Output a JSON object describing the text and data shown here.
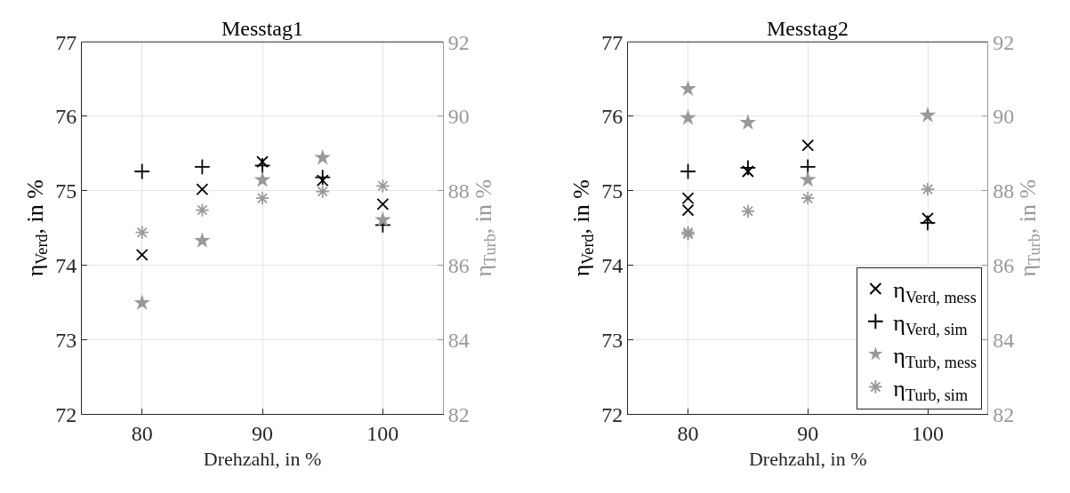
{
  "chart_data": [
    {
      "type": "scatter",
      "title": "Messtag1",
      "xlabel": "Drehzahl, in %",
      "ylabel": "η$_{Verd}$, in %",
      "y2label": "η$_{Turb}$, in %",
      "xlim": [
        75,
        105
      ],
      "xticks": [
        80,
        90,
        100
      ],
      "ylim": [
        72,
        77
      ],
      "yticks": [
        72,
        73,
        74,
        75,
        76,
        77
      ],
      "y2lim": [
        82,
        92
      ],
      "y2ticks": [
        82,
        84,
        86,
        88,
        90,
        92
      ],
      "grid": true,
      "legend": false,
      "series": [
        {
          "color": "#000000",
          "marker": "x",
          "x": [
            80,
            85,
            90,
            95,
            100
          ],
          "values": [
            74.14,
            75.02,
            75.39,
            75.14,
            74.82
          ]
        },
        {
          "color": "#000000",
          "marker": "cross",
          "x": [
            80,
            85,
            90,
            95,
            100
          ],
          "values": [
            75.26,
            75.32,
            75.34,
            75.18,
            74.54
          ]
        },
        {
          "color": "#999999",
          "marker": "star",
          "axis": "y2",
          "x": [
            80,
            85,
            90,
            95,
            100
          ],
          "values": [
            84.99,
            86.66,
            88.29,
            88.89,
            87.22
          ]
        },
        {
          "color": "#999999",
          "axis": "y2",
          "x": [
            80,
            85,
            90,
            95,
            100
          ],
          "values": [
            86.88,
            87.48,
            87.8,
            87.98,
            88.13
          ]
        }
      ]
    },
    {
      "type": "scatter",
      "title": "Messtag2",
      "xlabel": "Drehzahl, in %",
      "ylabel": "η$_{Verd}$, in %",
      "y2label": "η$_{Turb}$, in %",
      "xlim": [
        75,
        105
      ],
      "xticks": [
        80,
        90,
        100
      ],
      "ylim": [
        72,
        77
      ],
      "yticks": [
        72,
        73,
        74,
        75,
        76,
        77
      ],
      "y2lim": [
        82,
        92
      ],
      "y2ticks": [
        82,
        84,
        86,
        88,
        90,
        92
      ],
      "grid": true,
      "legend": "bottom right",
      "series": [
        {
          "name": "η$_{Verd, mess}$",
          "color": "#000000",
          "marker": "x",
          "x": [
            80,
            80,
            85,
            90,
            100
          ],
          "values": [
            74.9,
            74.74,
            75.26,
            75.61,
            74.63
          ]
        },
        {
          "name": "η$_{Verd, sim}$",
          "color": "#000000",
          "marker": "cross",
          "x": [
            80,
            85,
            90,
            100
          ],
          "values": [
            75.26,
            75.31,
            75.32,
            74.57
          ]
        },
        {
          "name": "η$_{Turb, mess}$",
          "color": "#999999",
          "marker": "star",
          "axis": "y2",
          "x": [
            80,
            80,
            85,
            90,
            100
          ],
          "values": [
            90.74,
            89.96,
            89.83,
            88.3,
            90.03
          ]
        },
        {
          "name": "η$_{Turb, sim}$",
          "color": "#999999",
          "axis": "y2",
          "x": [
            80,
            80,
            85,
            90,
            100
          ],
          "values": [
            86.88,
            86.84,
            87.45,
            87.8,
            88.04
          ]
        }
      ]
    }
  ]
}
